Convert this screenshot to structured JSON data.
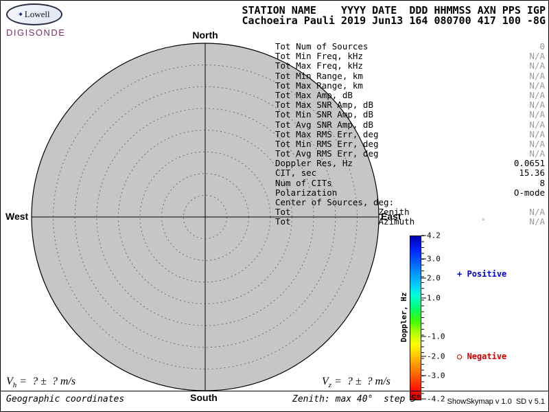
{
  "logo": {
    "brand": "Lowell",
    "product": "DIGISONDE"
  },
  "header": {
    "line1": "STATION NAME    YYYY DATE  DDD HHMMSS AXN PPS IGP",
    "line2": "Cachoeira Pauli 2019 Jun13 164 080700 417 100 -8G"
  },
  "skymap": {
    "north": "North",
    "south": "South",
    "west": "West",
    "east": "East",
    "max_zenith_deg": 40,
    "ring_step_deg": 5,
    "map_fill": "#c6c6c6"
  },
  "stats": {
    "rows": [
      {
        "label": "Tot Num of Sources",
        "value": "0",
        "muted": true
      },
      {
        "label": "Tot Min Freq, kHz",
        "value": "N/A",
        "muted": true
      },
      {
        "label": "Tot Max Freq, kHz",
        "value": "N/A",
        "muted": true
      },
      {
        "label": "Tot Min Range, km",
        "value": "N/A",
        "muted": true
      },
      {
        "label": "Tot Max Range, km",
        "value": "N/A",
        "muted": true
      },
      {
        "label": "Tot Max Amp, dB",
        "value": "N/A",
        "muted": true
      },
      {
        "label": "Tot Max SNR Amp, dB",
        "value": "N/A",
        "muted": true
      },
      {
        "label": "Tot Min SNR Amp, dB",
        "value": "N/A",
        "muted": true
      },
      {
        "label": "Tot Avg SNR Amp, dB",
        "value": "N/A",
        "muted": true
      },
      {
        "label": "Tot Max RMS Err, deg",
        "value": "N/A",
        "muted": true
      },
      {
        "label": "Tot Min RMS Err, deg",
        "value": "N/A",
        "muted": true
      },
      {
        "label": "Tot Avg RMS Err, deg",
        "value": "N/A",
        "muted": true
      },
      {
        "label": "Doppler Res, Hz",
        "value": "0.0651",
        "muted": false
      },
      {
        "label": "CIT, sec",
        "value": "15.36",
        "muted": false
      },
      {
        "label": "Num of CITs",
        "value": "8",
        "muted": false
      },
      {
        "label": "Polarization",
        "value": "O-mode",
        "muted": false
      },
      {
        "label": "Center of Sources, deg:",
        "value": "",
        "muted": false
      },
      {
        "label": "Tot                 Zenith",
        "value": "N/A",
        "muted": true
      },
      {
        "label": "Tot                 Azimuth",
        "value": "N/A",
        "muted": true
      }
    ],
    "azimuth_mark": "°"
  },
  "colorbar": {
    "title": "Doppler, Hz",
    "max": 4.2,
    "min": -4.2,
    "ticks": [
      {
        "label": "4.2",
        "value": 4.2
      },
      {
        "label": "3.0",
        "value": 3.0
      },
      {
        "label": "2.0",
        "value": 2.0
      },
      {
        "label": "1.0",
        "value": 1.0
      },
      {
        "label": "-1.0",
        "value": -1.0
      },
      {
        "label": "-2.0",
        "value": -2.0
      },
      {
        "label": "-3.0",
        "value": -3.0
      },
      {
        "label": "-4.2",
        "value": -4.2
      }
    ],
    "marker_positive": "+",
    "legend_positive": "Positive",
    "marker_negative": "○",
    "legend_negative": "Negative"
  },
  "footer": {
    "vh_symbol": "V",
    "vh_sub": "h",
    "vh_rest": " =  ? ±  ? m/s",
    "vz_symbol": "V",
    "vz_sub": "z",
    "vz_rest": " =  ? ±  ? m/s",
    "coordinates": "Geographic coordinates",
    "zenith_info": "Zenith: max 40°  step 5°",
    "version": "ShowSkymap v 1.0  SD v 5.1"
  },
  "colors": {
    "positive": "#0000cc",
    "negative": "#cc0000",
    "map_fill": "#c6c6c6",
    "muted_value": "#9a9a9a",
    "brand_product": "#7b2f66"
  },
  "chart_data": {
    "type": "scatter",
    "description": "Polar skymap (azimuth/zenith) of ionospheric Doppler sources; no sources plotted",
    "num_sources": 0,
    "points": [],
    "zenith_rings_deg": [
      5,
      10,
      15,
      20,
      25,
      30,
      35,
      40
    ],
    "doppler_scale_hz": {
      "min": -4.2,
      "max": 4.2
    },
    "colorbar_tick_values": [
      4.2,
      3.0,
      2.0,
      1.0,
      -1.0,
      -2.0,
      -3.0,
      -4.2
    ],
    "colorbar_title": "Doppler, Hz"
  }
}
